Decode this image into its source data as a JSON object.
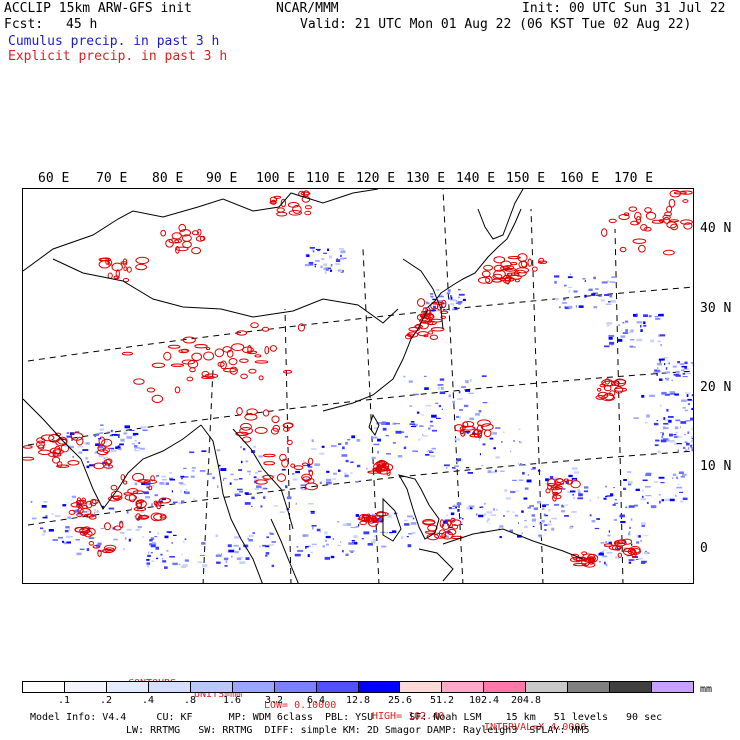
{
  "header": {
    "model_title": "ACCLIP 15km ARW-GFS init",
    "center": "NCAR/MMM",
    "init": "Init: 00 UTC Sun 31 Jul 22",
    "fcst_label": "Fcst:",
    "fcst_value": "45 h",
    "valid": "Valid: 21 UTC Mon 01 Aug 22 (06 KST Tue 02 Aug 22)",
    "field1": "Cumulus precip. in past 3 h",
    "field2": "Explicit precip. in past 3 h",
    "field1_color": "#1c1cc8",
    "field2_color": "#e02020"
  },
  "map": {
    "lon_labels": [
      "60 E",
      "70 E",
      "80 E",
      "90 E",
      "100 E",
      "110 E",
      "120 E",
      "130 E",
      "140 E",
      "150 E",
      "160 E",
      "170 E"
    ],
    "lat_labels": [
      "40 N",
      "30 N",
      "20 N",
      "10 N",
      "0"
    ],
    "coastline_color": "#000000",
    "explicit_color": "#e00000",
    "cumulus_color": "#2828ff"
  },
  "contours": {
    "label": "CONTOURS:",
    "units": "UNITS=mm",
    "low": "LOW= 0.10000",
    "high": "HIGH= 102.40",
    "interval": "INTERVAL=X 4.0000"
  },
  "colorbar": {
    "colors": [
      "#ffffff",
      "#f4f4ff",
      "#e6ecff",
      "#d6deff",
      "#b8c8ff",
      "#9aa6ff",
      "#7a80ff",
      "#5050ff",
      "#0000ff",
      "#ffd8d8",
      "#ffa8c8",
      "#ff78a8",
      "#c8c8c8",
      "#808080",
      "#404040",
      "#c8a0ff"
    ],
    "tick_labels": [
      ".1",
      ".2",
      ".4",
      ".8",
      "1.6",
      "3.2",
      "6.4",
      "12.8",
      "25.6",
      "51.2",
      "102.4",
      "204.8"
    ],
    "units": "mm"
  },
  "model_info": {
    "line1": "Model Info: V4.4     CU: KF      MP: WDM 6class  PBL: YSU      SF: Noah LSM    15 km   51 levels   90 sec",
    "line2": "LW: RRTMG   SW: RRTMG  DIFF: simple KM: 2D Smagor DAMP: Rayleigh3  SFLAY: MM5"
  }
}
